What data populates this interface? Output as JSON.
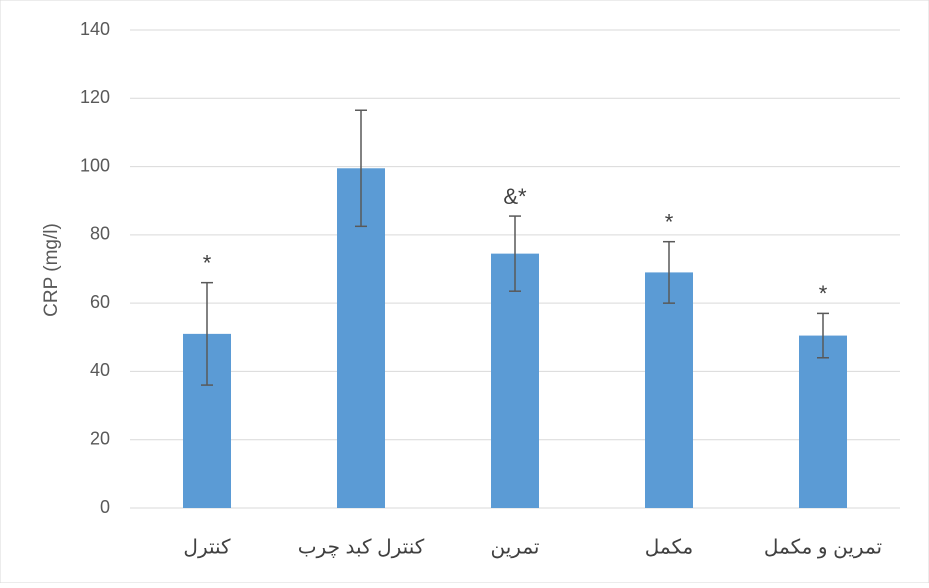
{
  "chart_data": {
    "type": "bar",
    "y_label": "CRP (mg/l)",
    "categories": [
      "کنترل",
      "کنترل کبد چرب",
      "تمرین",
      "مکمل",
      "تمرین و مکمل"
    ],
    "values": [
      51,
      99.5,
      74.5,
      69,
      50.5
    ],
    "errors": [
      15,
      17,
      11,
      9,
      6.5
    ],
    "annotations": [
      "*",
      null,
      "&*",
      "*",
      "*"
    ],
    "color": "#5b9bd5",
    "error_color": "#595959",
    "ylim": [
      0,
      140
    ],
    "yticks": [
      0,
      20,
      40,
      60,
      80,
      100,
      120,
      140
    ],
    "grid": true
  }
}
